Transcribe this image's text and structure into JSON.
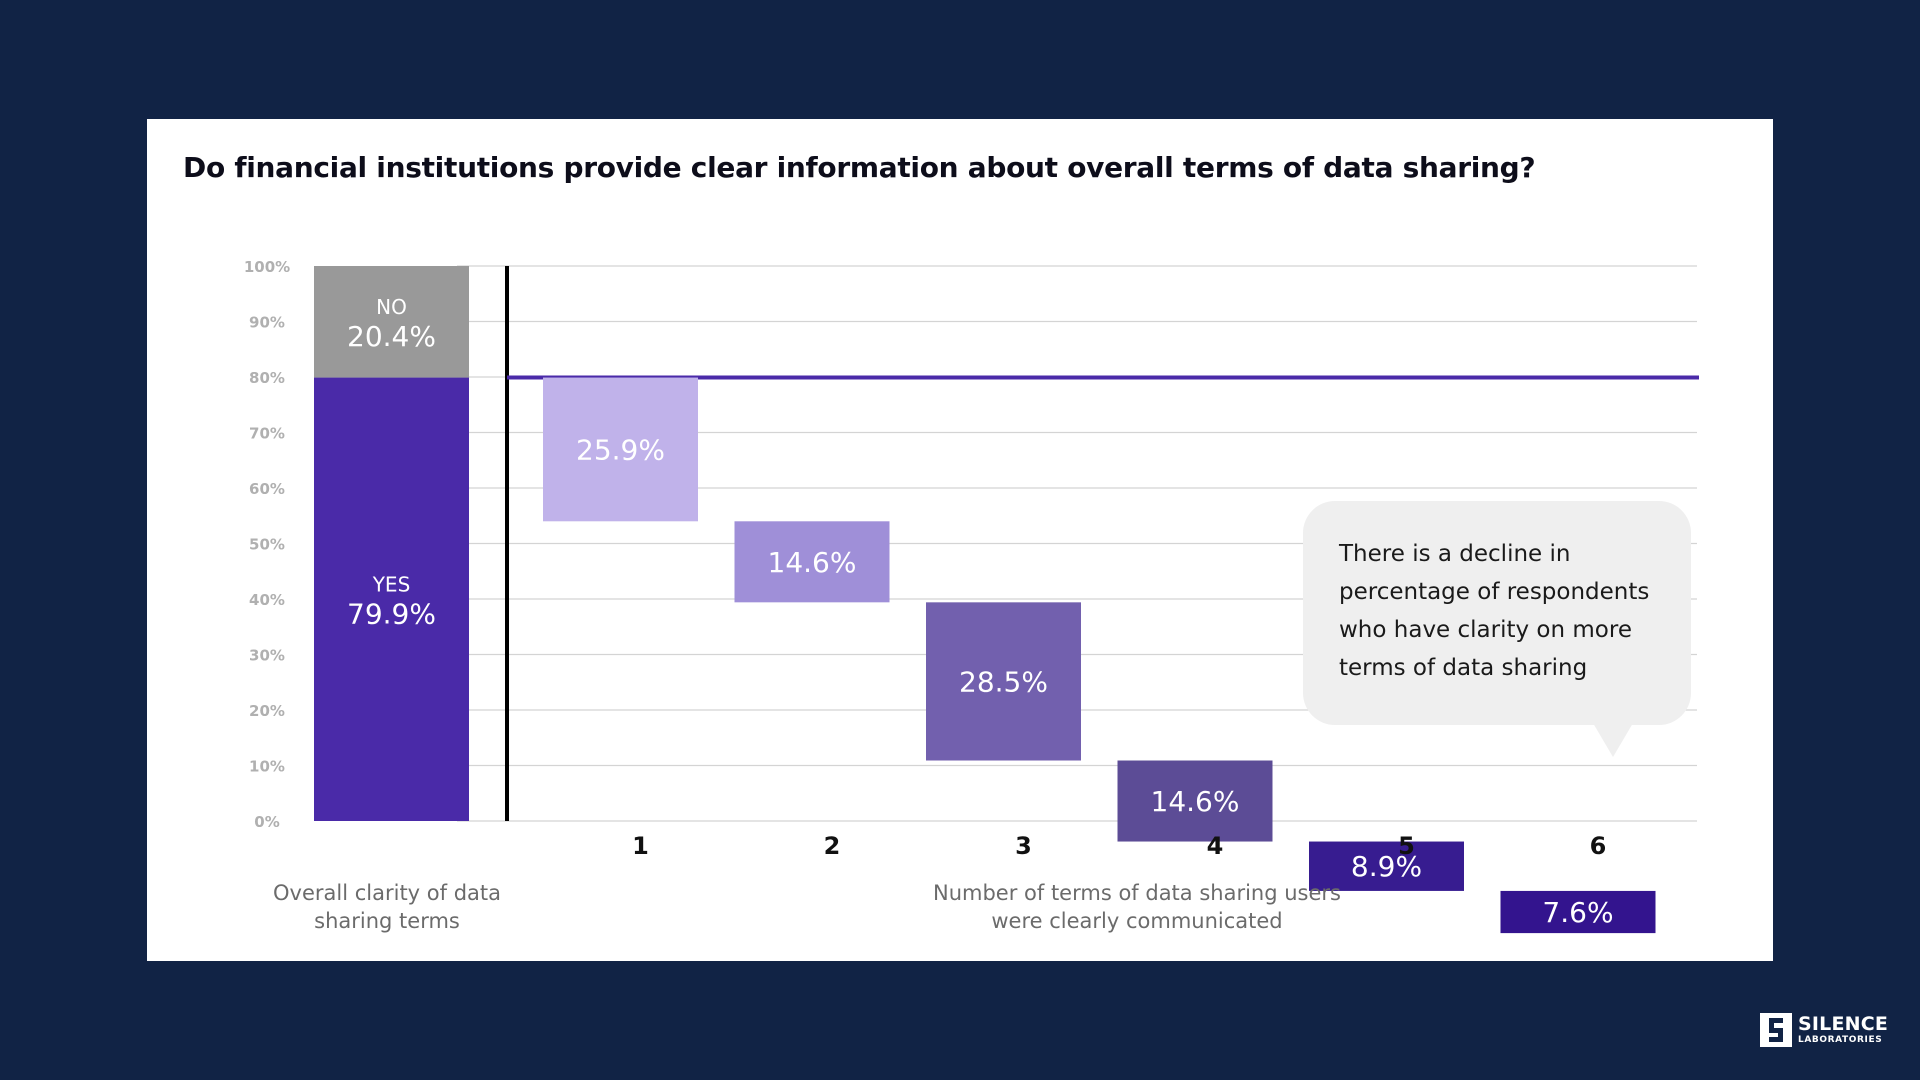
{
  "chart_data": {
    "type": "bar",
    "title": "Do financial institutions provide clear information about overall terms of data sharing?",
    "ylim": [
      0,
      100
    ],
    "yticks": [
      "0%",
      "10%",
      "20%",
      "30%",
      "40%",
      "50%",
      "60%",
      "70%",
      "80%",
      "90%",
      "100%"
    ],
    "overall": {
      "caption": "Overall clarity of data sharing terms",
      "segments": [
        {
          "name": "YES",
          "value": 79.9,
          "label": "79.9%",
          "color": "#4a2aa8"
        },
        {
          "name": "NO",
          "value": 20.4,
          "label": "20.4%",
          "color": "#999999"
        }
      ]
    },
    "waterfall": {
      "caption": "Number of terms of data sharing users were clearly communicated",
      "categories": [
        "1",
        "2",
        "3",
        "4",
        "5",
        "6"
      ],
      "values": [
        25.9,
        14.6,
        28.5,
        14.6,
        8.9,
        7.6
      ],
      "labels": [
        "25.9%",
        "14.6%",
        "28.5%",
        "14.6%",
        "8.9%",
        "7.6%"
      ],
      "colors": [
        "#c0b2ea",
        "#9f8fd8",
        "#7260ae",
        "#5c4c96",
        "#371c90",
        "#33148e"
      ],
      "reference_line": {
        "value": 79.9,
        "color": "#4a2aa8"
      }
    },
    "annotation": "There is a decline in percentage of respondents who have clarity on more terms of data sharing"
  },
  "logo": {
    "name": "SILENCE",
    "sub": "LABORATORIES"
  }
}
